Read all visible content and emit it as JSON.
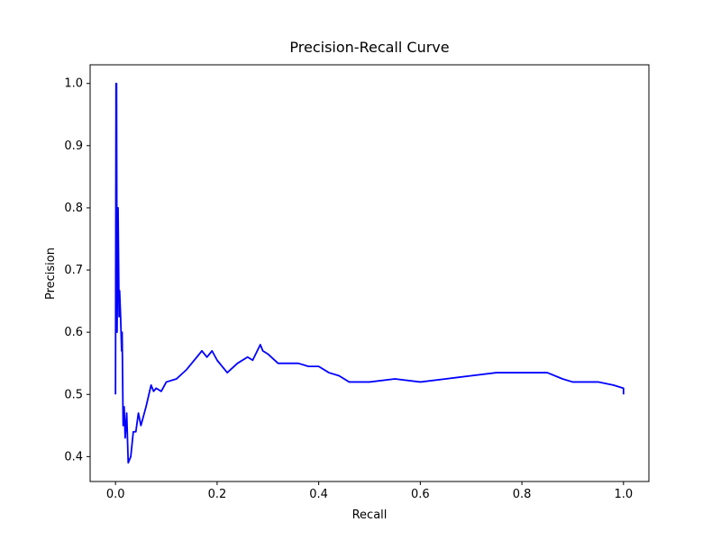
{
  "chart_data": {
    "type": "line",
    "title": "Precision-Recall Curve",
    "xlabel": "Recall",
    "ylabel": "Precision",
    "x": [
      0,
      0.001,
      0.002,
      0.003,
      0.005,
      0.007,
      0.008,
      0.01,
      0.012,
      0.013,
      0.015,
      0.017,
      0.019,
      0.022,
      0.025,
      0.03,
      0.035,
      0.04,
      0.045,
      0.05,
      0.06,
      0.07,
      0.075,
      0.08,
      0.09,
      0.1,
      0.12,
      0.14,
      0.16,
      0.17,
      0.18,
      0.19,
      0.2,
      0.21,
      0.22,
      0.24,
      0.26,
      0.27,
      0.285,
      0.29,
      0.3,
      0.32,
      0.34,
      0.36,
      0.38,
      0.4,
      0.42,
      0.44,
      0.46,
      0.5,
      0.55,
      0.6,
      0.65,
      0.7,
      0.75,
      0.8,
      0.85,
      0.88,
      0.9,
      0.95,
      0.98,
      1.0,
      1.0
    ],
    "values": [
      0.5,
      1.0,
      1.0,
      0.6,
      0.8,
      0.625,
      0.667,
      0.625,
      0.57,
      0.6,
      0.45,
      0.48,
      0.43,
      0.47,
      0.39,
      0.4,
      0.44,
      0.44,
      0.47,
      0.45,
      0.48,
      0.515,
      0.505,
      0.51,
      0.505,
      0.52,
      0.525,
      0.54,
      0.56,
      0.57,
      0.56,
      0.57,
      0.555,
      0.545,
      0.535,
      0.55,
      0.56,
      0.555,
      0.58,
      0.57,
      0.565,
      0.55,
      0.55,
      0.55,
      0.545,
      0.545,
      0.535,
      0.53,
      0.52,
      0.52,
      0.525,
      0.52,
      0.525,
      0.53,
      0.535,
      0.535,
      0.535,
      0.525,
      0.52,
      0.52,
      0.515,
      0.51,
      0.5
    ],
    "color": "#0000ff",
    "xlim": [
      -0.05,
      1.05
    ],
    "ylim": [
      0.36,
      1.03
    ],
    "xticks": [
      {
        "value": 0,
        "label": "0.0"
      },
      0.2,
      0.4,
      0.6,
      0.8,
      {
        "value": 1,
        "label": "1.0"
      }
    ],
    "yticks": [
      0.4,
      0.5,
      0.6,
      0.7,
      0.8,
      0.9,
      {
        "value": 1,
        "label": "1.0"
      }
    ],
    "grid": false
  }
}
